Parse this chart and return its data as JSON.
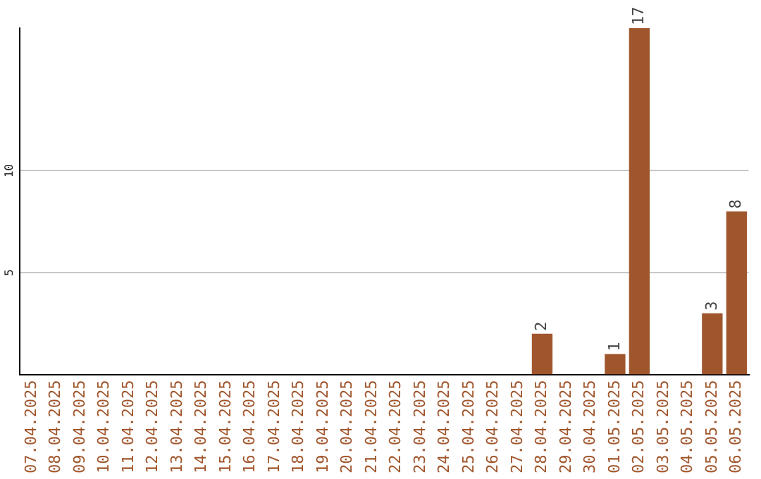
{
  "chart_data": {
    "type": "bar",
    "categories": [
      "07.04.2025",
      "08.04.2025",
      "09.04.2025",
      "10.04.2025",
      "11.04.2025",
      "12.04.2025",
      "13.04.2025",
      "14.04.2025",
      "15.04.2025",
      "16.04.2025",
      "17.04.2025",
      "18.04.2025",
      "19.04.2025",
      "20.04.2025",
      "21.04.2025",
      "22.04.2025",
      "23.04.2025",
      "24.04.2025",
      "25.04.2025",
      "26.04.2025",
      "27.04.2025",
      "28.04.2025",
      "29.04.2025",
      "30.04.2025",
      "01.05.2025",
      "02.05.2025",
      "03.05.2025",
      "04.05.2025",
      "05.05.2025",
      "06.05.2025"
    ],
    "values": [
      0,
      0,
      0,
      0,
      0,
      0,
      0,
      0,
      0,
      0,
      0,
      0,
      0,
      0,
      0,
      0,
      0,
      0,
      0,
      0,
      0,
      2,
      0,
      0,
      1,
      17,
      0,
      0,
      3,
      8
    ],
    "value_labels": [
      null,
      null,
      null,
      null,
      null,
      null,
      null,
      null,
      null,
      null,
      null,
      null,
      null,
      null,
      null,
      null,
      null,
      null,
      null,
      null,
      null,
      "2",
      null,
      null,
      "1",
      "17",
      null,
      null,
      "3",
      "8"
    ],
    "color": "#a0562c",
    "ylim": [
      0,
      17
    ],
    "yticks": [
      5,
      10
    ],
    "grid": "y",
    "legend": false
  }
}
